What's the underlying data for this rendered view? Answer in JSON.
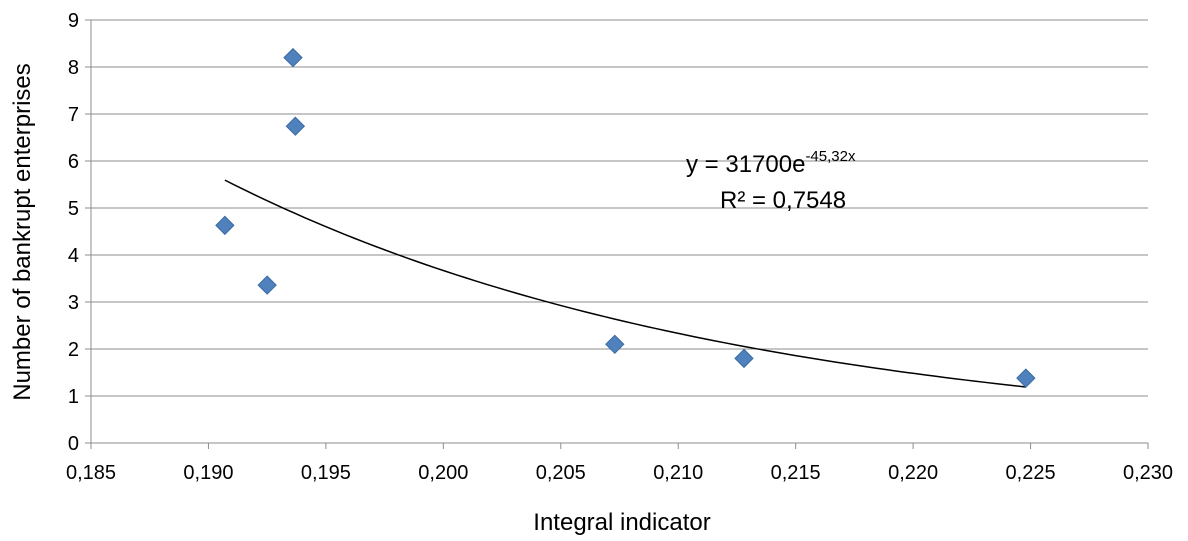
{
  "chart_data": {
    "type": "scatter",
    "xlabel": "Integral indicator",
    "ylabel": "Number of bankrupt enterprises",
    "xlim": [
      0.185,
      0.23
    ],
    "ylim": [
      0,
      9
    ],
    "x_ticks": [
      "0,185",
      "0,190",
      "0,195",
      "0,200",
      "0,205",
      "0,210",
      "0,215",
      "0,220",
      "0,225",
      "0,230"
    ],
    "y_ticks": [
      "0",
      "1",
      "2",
      "3",
      "4",
      "5",
      "6",
      "7",
      "8",
      "9"
    ],
    "grid": "horizontal",
    "marker": "diamond",
    "marker_color": "#4F81BD",
    "points": [
      {
        "x": 0.1907,
        "y": 4.63
      },
      {
        "x": 0.1925,
        "y": 3.36
      },
      {
        "x": 0.1936,
        "y": 8.2
      },
      {
        "x": 0.1937,
        "y": 6.74
      },
      {
        "x": 0.2073,
        "y": 2.1
      },
      {
        "x": 0.2128,
        "y": 1.8
      },
      {
        "x": 0.2248,
        "y": 1.38
      }
    ],
    "trendline": {
      "type": "exponential",
      "a": 31700,
      "b": -45.32,
      "x_range": [
        0.1907,
        0.2248
      ],
      "equation_prefix": "y = 31700e",
      "equation_exponent": "-45,32x",
      "r_squared_label": "R² = 0,7548"
    }
  }
}
